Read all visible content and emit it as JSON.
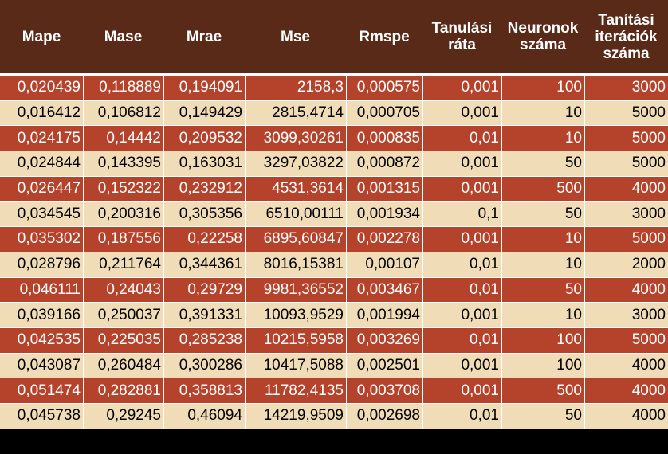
{
  "table": {
    "headers": [
      [
        "Mape"
      ],
      [
        "Mase"
      ],
      [
        "Mrae"
      ],
      [
        "Mse"
      ],
      [
        "Rmspe"
      ],
      [
        "Tanulási",
        "ráta"
      ],
      [
        "Neuronok",
        "száma"
      ],
      [
        "Tanítási",
        "iterációk",
        "száma"
      ]
    ],
    "rows": [
      [
        "0,020439",
        "0,118889",
        "0,194091",
        "2158,3",
        "0,000575",
        "0,001",
        "100",
        "3000"
      ],
      [
        "0,016412",
        "0,106812",
        "0,149429",
        "2815,4714",
        "0,000705",
        "0,001",
        "10",
        "5000"
      ],
      [
        "0,024175",
        "0,14442",
        "0,209532",
        "3099,30261",
        "0,000835",
        "0,01",
        "10",
        "5000"
      ],
      [
        "0,024844",
        "0,143395",
        "0,163031",
        "3297,03822",
        "0,000872",
        "0,001",
        "50",
        "5000"
      ],
      [
        "0,026447",
        "0,152322",
        "0,232912",
        "4531,3614",
        "0,001315",
        "0,001",
        "500",
        "4000"
      ],
      [
        "0,034545",
        "0,200316",
        "0,305356",
        "6510,00111",
        "0,001934",
        "0,1",
        "50",
        "3000"
      ],
      [
        "0,035302",
        "0,187556",
        "0,22258",
        "6895,60847",
        "0,002278",
        "0,001",
        "10",
        "5000"
      ],
      [
        "0,028796",
        "0,211764",
        "0,344361",
        "8016,15381",
        "0,00107",
        "0,01",
        "10",
        "2000"
      ],
      [
        "0,046111",
        "0,24043",
        "0,29729",
        "9981,36552",
        "0,003467",
        "0,01",
        "50",
        "4000"
      ],
      [
        "0,039166",
        "0,250037",
        "0,391331",
        "10093,9529",
        "0,001994",
        "0,001",
        "10",
        "3000"
      ],
      [
        "0,042535",
        "0,225035",
        "0,285238",
        "10215,5958",
        "0,003269",
        "0,01",
        "100",
        "5000"
      ],
      [
        "0,043087",
        "0,260484",
        "0,300286",
        "10417,5088",
        "0,002501",
        "0,001",
        "100",
        "4000"
      ],
      [
        "0,051474",
        "0,282881",
        "0,358813",
        "11782,4135",
        "0,003708",
        "0,001",
        "500",
        "4000"
      ],
      [
        "0,045738",
        "0,29245",
        "0,46094",
        "14219,9509",
        "0,002698",
        "0,01",
        "50",
        "4000"
      ]
    ]
  },
  "colors": {
    "header_bg": "#5a2a19",
    "row_dark": "#b5422a",
    "row_light": "#f0ddb8"
  }
}
